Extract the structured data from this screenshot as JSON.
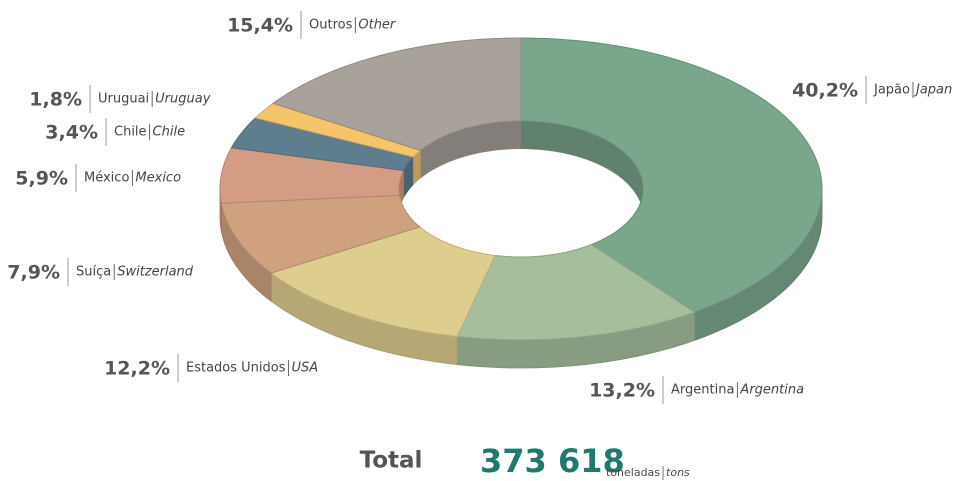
{
  "chart_data": {
    "type": "pie",
    "donut": true,
    "three_d": true,
    "categories": [
      "Japão",
      "Argentina",
      "Estados Unidos",
      "Suíça",
      "México",
      "Chile",
      "Uruguai",
      "Outros"
    ],
    "categories_en": [
      "Japan",
      "Argentina",
      "USA",
      "Switzerland",
      "Mexico",
      "Chile",
      "Uruguay",
      "Other"
    ],
    "values": [
      40.2,
      13.2,
      12.2,
      7.9,
      5.9,
      3.4,
      1.8,
      15.4
    ],
    "value_labels": [
      "40,2%",
      "13,2%",
      "12,2%",
      "7,9%",
      "5,9%",
      "3,4%",
      "1,8%",
      "15,4%"
    ],
    "colors": [
      "#7aa68c",
      "#a5be9c",
      "#ddcd8e",
      "#cfa17f",
      "#d49c83",
      "#5f7e8d",
      "#f5c56c",
      "#a8a29b"
    ],
    "total": {
      "label": "Total",
      "value": 373618,
      "value_label": "373 618",
      "unit": "toneladas",
      "unit_en": "tons"
    }
  }
}
